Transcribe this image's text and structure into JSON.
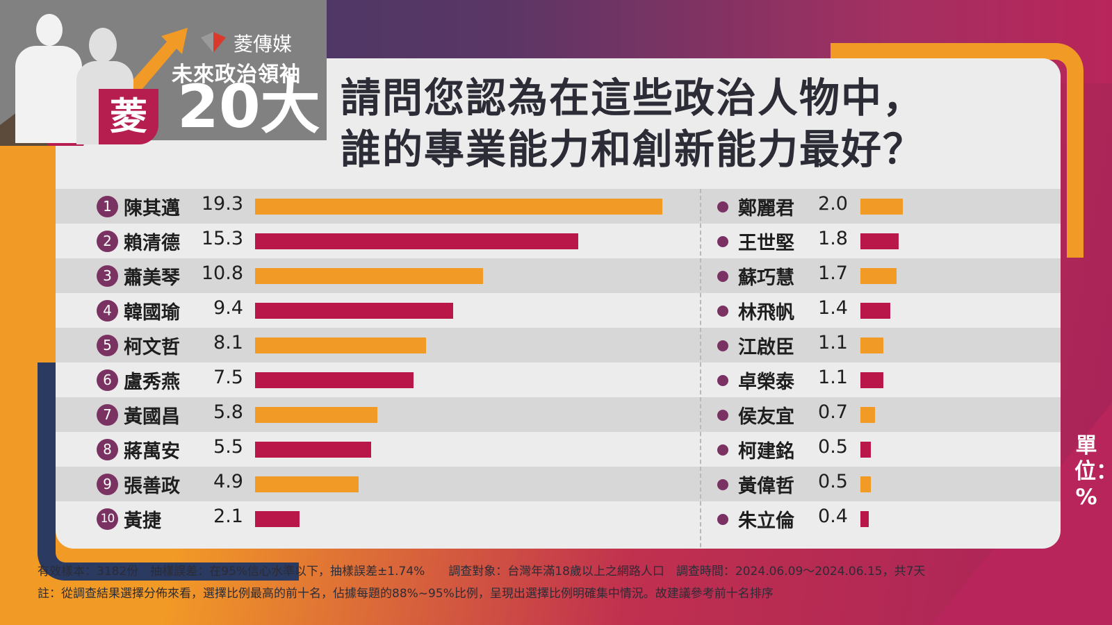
{
  "header": {
    "brand": "菱傳媒",
    "subtitle": "未來政治領袖",
    "big_number": "20大",
    "badge": "菱"
  },
  "chart_data": {
    "type": "bar",
    "title_line1": "請問您認為在這些政治人物中，",
    "title_line2": "誰的專業能力和創新能力最好？",
    "unit_label": "單位：%",
    "xlim": [
      0,
      20
    ],
    "colors": {
      "orange": "#f29a26",
      "crimson": "#b9164a",
      "marker": "#7a3263"
    },
    "left": [
      {
        "rank": "1",
        "name": "陳其邁",
        "value": 19.3,
        "label": "19.3"
      },
      {
        "rank": "2",
        "name": "賴清德",
        "value": 15.3,
        "label": "15.3"
      },
      {
        "rank": "3",
        "name": "蕭美琴",
        "value": 10.8,
        "label": "10.8"
      },
      {
        "rank": "4",
        "name": "韓國瑜",
        "value": 9.4,
        "label": "9.4"
      },
      {
        "rank": "5",
        "name": "柯文哲",
        "value": 8.1,
        "label": "8.1"
      },
      {
        "rank": "6",
        "name": "盧秀燕",
        "value": 7.5,
        "label": "7.5"
      },
      {
        "rank": "7",
        "name": "黃國昌",
        "value": 5.8,
        "label": "5.8"
      },
      {
        "rank": "8",
        "name": "蔣萬安",
        "value": 5.5,
        "label": "5.5"
      },
      {
        "rank": "9",
        "name": "張善政",
        "value": 4.9,
        "label": "4.9"
      },
      {
        "rank": "10",
        "name": "黃捷",
        "value": 2.1,
        "label": "2.1"
      }
    ],
    "right": [
      {
        "name": "鄭麗君",
        "value": 2.0,
        "label": "2.0"
      },
      {
        "name": "王世堅",
        "value": 1.8,
        "label": "1.8"
      },
      {
        "name": "蘇巧慧",
        "value": 1.7,
        "label": "1.7"
      },
      {
        "name": "林飛帆",
        "value": 1.4,
        "label": "1.4"
      },
      {
        "name": "江啟臣",
        "value": 1.1,
        "label": "1.1"
      },
      {
        "name": "卓榮泰",
        "value": 1.1,
        "label": "1.1"
      },
      {
        "name": "侯友宜",
        "value": 0.7,
        "label": "0.7"
      },
      {
        "name": "柯建銘",
        "value": 0.5,
        "label": "0.5"
      },
      {
        "name": "黃偉哲",
        "value": 0.5,
        "label": "0.5"
      },
      {
        "name": "朱立倫",
        "value": 0.4,
        "label": "0.4"
      }
    ]
  },
  "footer": {
    "line1": "有效樣本：3182份　抽樣誤差：在95%信心水準以下，抽樣誤差±1.74%　　調查對象：台灣年滿18歲以上之網路人口　調查時間：2024.06.09～2024.06.15，共7天",
    "line2": "註：從調查結果選擇分佈來看，選擇比例最高的前十名，佔據每題的88%~95%比例，呈現出選擇比例明確集中情況。故建議參考前十名排序"
  }
}
